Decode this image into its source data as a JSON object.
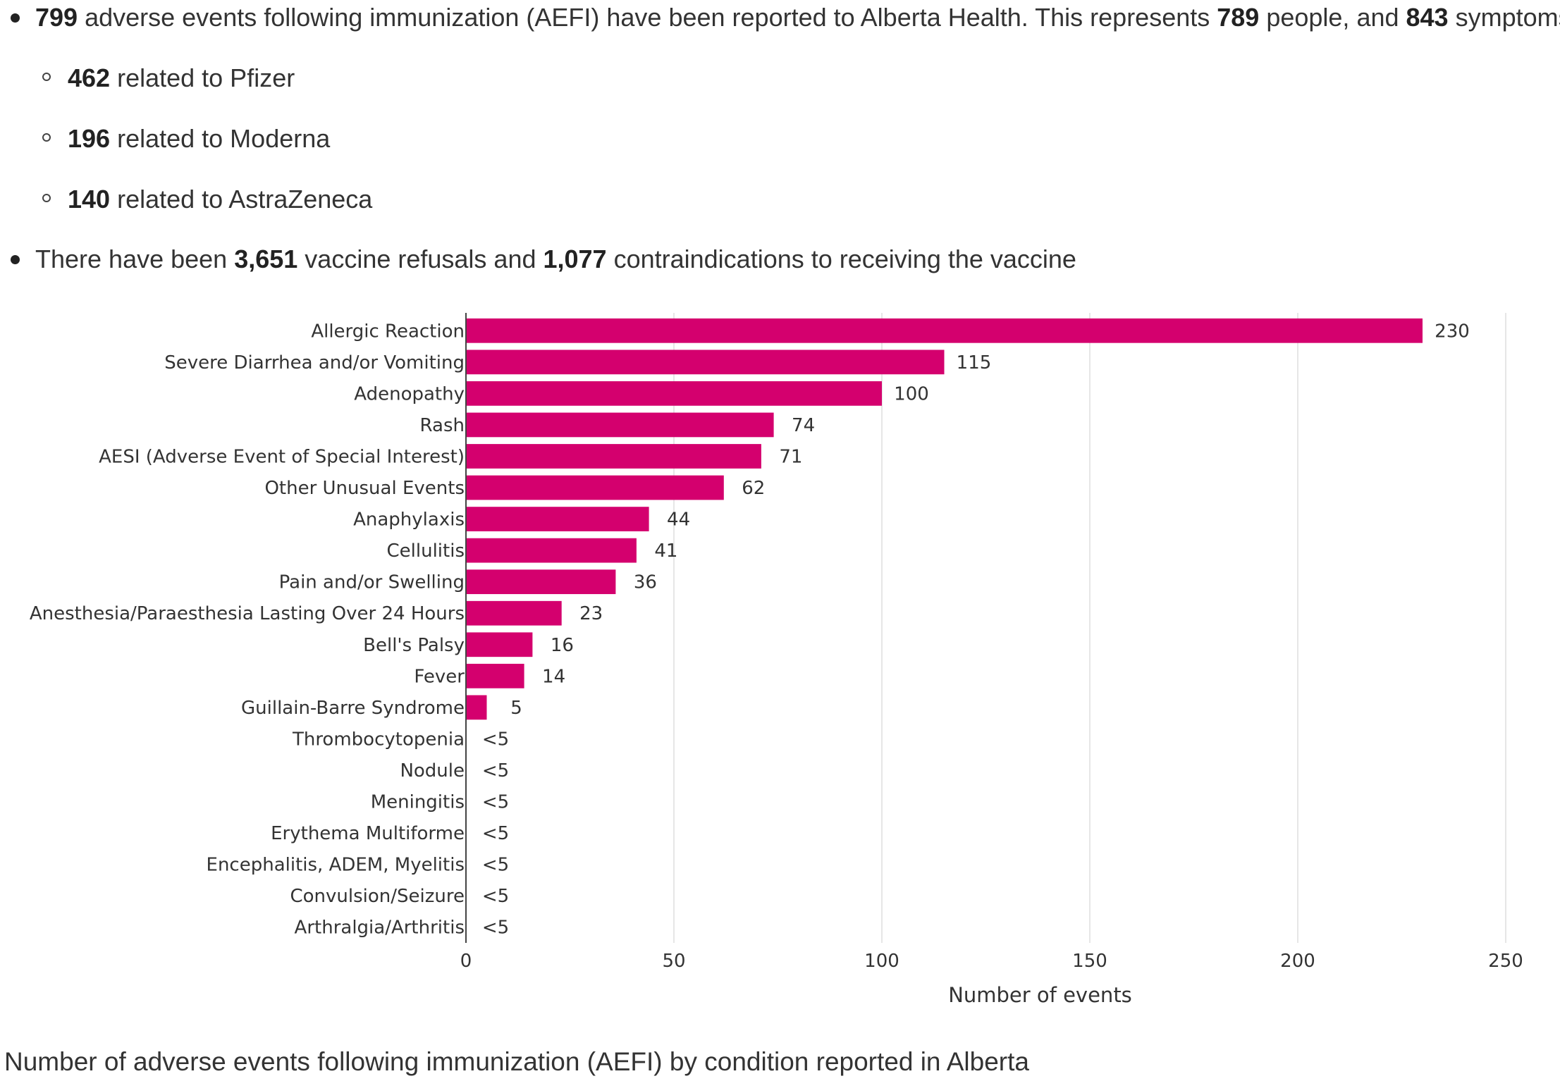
{
  "summary": {
    "b1": {
      "n1": "799",
      "t1": " adverse events following immunization (AEFI) have been reported to Alberta Health. This represents ",
      "n2": "789",
      "t2": " people, and ",
      "n3": "843",
      "t3": " symptoms."
    },
    "sub": [
      {
        "n": "462",
        "t": " related to Pfizer"
      },
      {
        "n": "196",
        "t": " related to Moderna"
      },
      {
        "n": "140",
        "t": " related to AstraZeneca"
      }
    ],
    "b2": {
      "t1": "There have been ",
      "n1": "3,651",
      "t2": " vaccine refusals and ",
      "n2": "1,077",
      "t3": " contraindications to receiving the vaccine"
    }
  },
  "chart_data": {
    "type": "bar",
    "orientation": "horizontal",
    "categories": [
      "Allergic Reaction",
      "Severe Diarrhea and/or Vomiting",
      "Adenopathy",
      "Rash",
      "AESI (Adverse Event of Special Interest)",
      "Other Unusual Events",
      "Anaphylaxis",
      "Cellulitis",
      "Pain and/or Swelling",
      "Anesthesia/Paraesthesia Lasting Over 24 Hours",
      "Bell's Palsy",
      "Fever",
      "Guillain-Barre Syndrome",
      "Thrombocytopenia",
      "Nodule",
      "Meningitis",
      "Erythema Multiforme",
      "Encephalitis, ADEM, Myelitis",
      "Convulsion/Seizure",
      "Arthralgia/Arthritis"
    ],
    "values": [
      230,
      115,
      100,
      74,
      71,
      62,
      44,
      41,
      36,
      23,
      16,
      14,
      5,
      0,
      0,
      0,
      0,
      0,
      0,
      0
    ],
    "value_labels": [
      "230",
      "115",
      "100",
      "74",
      "71",
      "62",
      "44",
      "41",
      "36",
      "23",
      "16",
      "14",
      "5",
      "<5",
      "<5",
      "<5",
      "<5",
      "<5",
      "<5",
      "<5"
    ],
    "xlabel": "Number of events",
    "ylabel": "",
    "xlim": [
      0,
      250
    ],
    "xticks": [
      "0",
      "50",
      "100",
      "150",
      "200",
      "250"
    ],
    "grid": true,
    "bar_color": "#d4006e"
  },
  "caption": "Number of adverse events following immunization (AEFI) by condition reported in Alberta"
}
